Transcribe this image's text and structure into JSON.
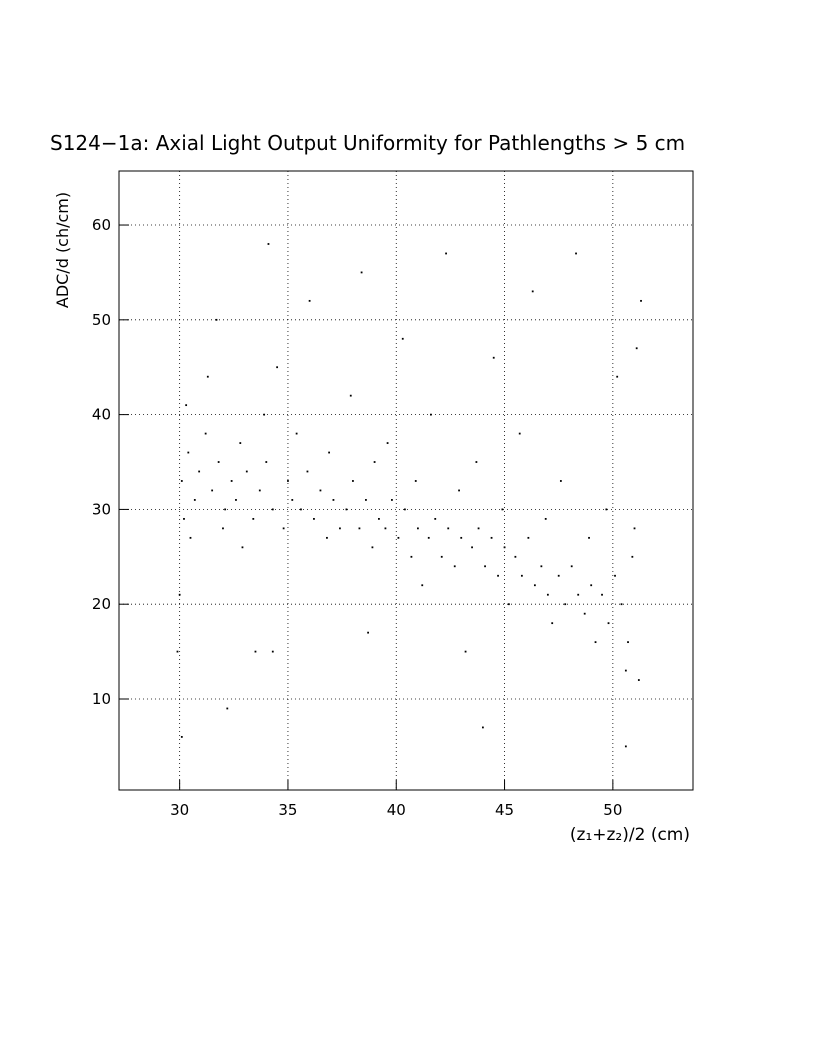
{
  "chart_data": {
    "type": "scatter",
    "title": "S124−1a: Axial Light Output Uniformity for Pathlengths > 5 cm",
    "x_label": "(z₁+z₂)/2 (cm)",
    "y_label": "ADC/d (ch/cm)",
    "color": "#000000",
    "grid": true,
    "xlim": [
      27.2,
      53.7
    ],
    "ylim": [
      0.4,
      65.7
    ],
    "xticks": [
      30,
      35,
      40,
      45,
      50
    ],
    "yticks": [
      10,
      20,
      30,
      40,
      50,
      60
    ],
    "x": [
      30.1,
      30.4,
      30.7,
      30.2,
      30.9,
      31.2,
      30.5,
      31.5,
      30.3,
      31.8,
      32.1,
      32.4,
      32.8,
      31.3,
      32.0,
      33.1,
      32.6,
      33.4,
      31.7,
      32.9,
      33.7,
      34.0,
      34.3,
      34.8,
      35.0,
      33.9,
      34.5,
      35.2,
      34.1,
      33.5,
      35.6,
      35.9,
      36.2,
      36.5,
      36.8,
      37.1,
      35.4,
      36.0,
      36.9,
      37.4,
      37.7,
      38.0,
      38.3,
      38.6,
      38.9,
      39.2,
      37.9,
      38.4,
      39.0,
      38.7,
      39.5,
      39.8,
      40.1,
      40.4,
      40.7,
      41.0,
      39.6,
      40.3,
      40.9,
      41.2,
      41.5,
      41.8,
      42.1,
      42.4,
      42.7,
      43.0,
      41.6,
      42.3,
      42.9,
      43.2,
      43.5,
      43.8,
      44.1,
      44.4,
      44.7,
      45.0,
      43.7,
      44.5,
      44.9,
      45.2,
      45.5,
      45.8,
      46.1,
      46.4,
      46.7,
      47.0,
      45.7,
      46.3,
      46.9,
      47.2,
      47.5,
      47.8,
      48.1,
      48.4,
      48.7,
      49.0,
      47.6,
      48.3,
      48.9,
      49.2,
      49.5,
      49.8,
      50.1,
      50.4,
      50.7,
      50.9,
      49.7,
      50.2,
      50.6,
      51.0,
      30.0,
      29.9,
      30.1,
      32.2,
      34.3,
      50.6,
      51.2,
      51.1,
      51.3,
      44.0
    ],
    "values": [
      33,
      36,
      31,
      29,
      34,
      38,
      27,
      32,
      41,
      35,
      30,
      33,
      37,
      44,
      28,
      34,
      31,
      29,
      50,
      26,
      32,
      35,
      30,
      28,
      33,
      40,
      45,
      31,
      58,
      15,
      30,
      34,
      29,
      32,
      27,
      31,
      38,
      52,
      36,
      28,
      30,
      33,
      28,
      31,
      26,
      29,
      42,
      55,
      35,
      17,
      28,
      31,
      27,
      30,
      25,
      28,
      37,
      48,
      33,
      22,
      27,
      29,
      25,
      28,
      24,
      27,
      40,
      57,
      32,
      15,
      26,
      28,
      24,
      27,
      23,
      26,
      35,
      46,
      30,
      20,
      25,
      23,
      27,
      22,
      24,
      21,
      38,
      53,
      29,
      18,
      23,
      20,
      24,
      21,
      19,
      22,
      33,
      57,
      27,
      16,
      21,
      18,
      23,
      20,
      16,
      25,
      30,
      44,
      13,
      28,
      21,
      15,
      6,
      9,
      15,
      5,
      12,
      47,
      52,
      7
    ]
  }
}
